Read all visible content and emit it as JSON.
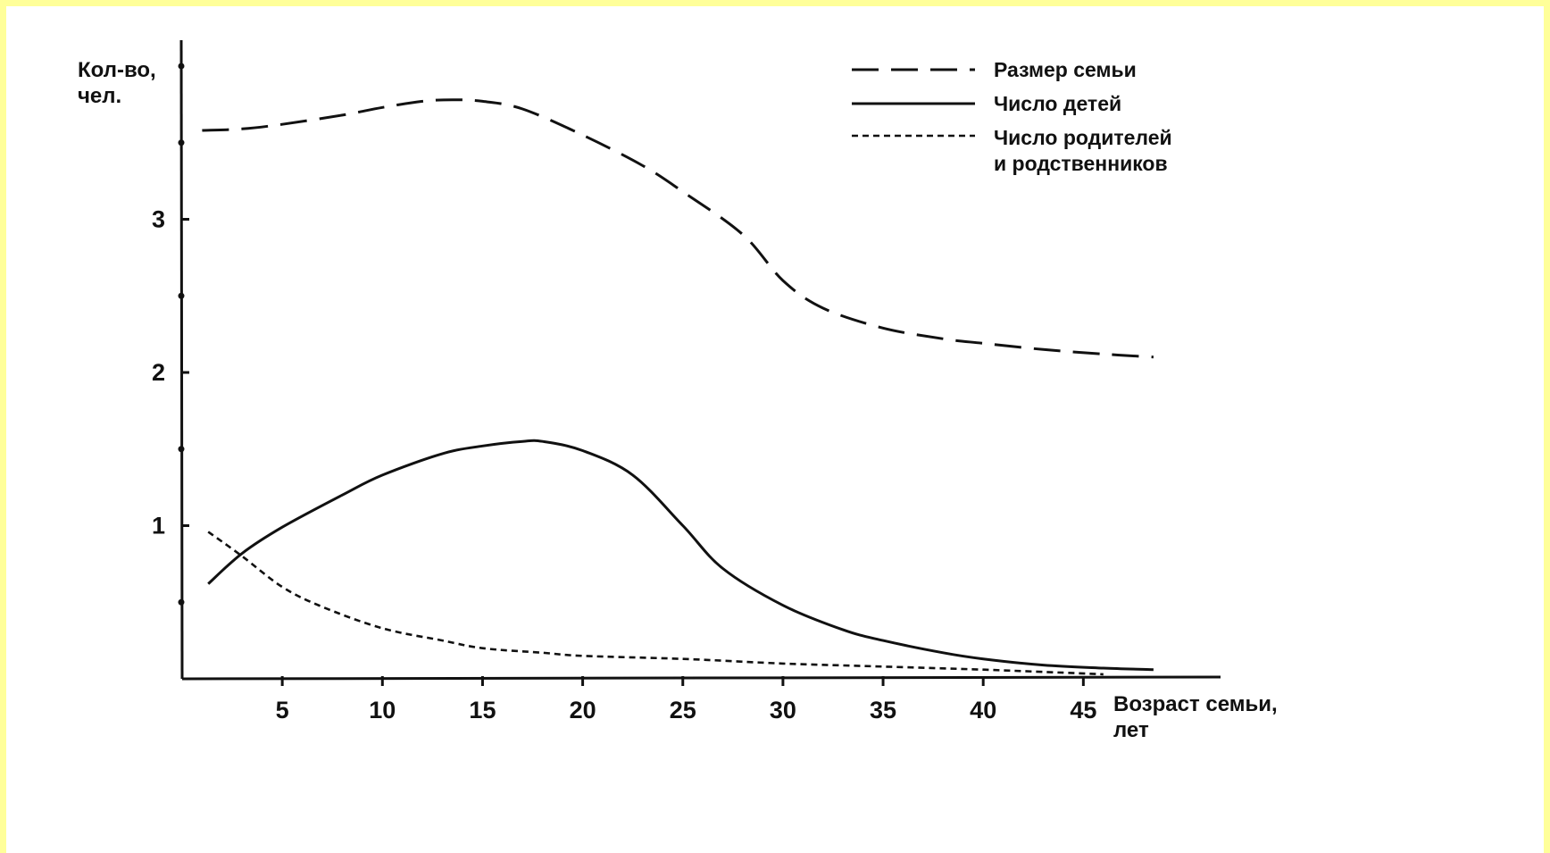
{
  "chart_data": {
    "type": "line",
    "ylabel": [
      "Кол-во,",
      "чел."
    ],
    "xlabel": [
      "Возраст семьи,",
      "лет"
    ],
    "xlim": [
      0,
      52
    ],
    "ylim": [
      0,
      4.2
    ],
    "x_ticks": [
      5,
      10,
      15,
      20,
      25,
      30,
      35,
      40,
      45
    ],
    "y_ticks": [
      1,
      2,
      3
    ],
    "y_minor_ticks": [
      0.5,
      1.5,
      2.5,
      3.5,
      4
    ],
    "grid": false,
    "legend_position": "top-right",
    "series": [
      {
        "name": "Размер семьи",
        "style": "long-dash",
        "x": [
          1,
          3,
          5,
          8,
          10,
          12,
          13.5,
          15,
          17,
          20,
          23,
          25,
          28,
          30,
          32,
          35,
          38,
          40,
          43,
          46,
          48.5
        ],
        "y": [
          3.58,
          3.59,
          3.62,
          3.68,
          3.73,
          3.77,
          3.78,
          3.77,
          3.72,
          3.55,
          3.35,
          3.18,
          2.9,
          2.6,
          2.42,
          2.29,
          2.22,
          2.19,
          2.15,
          2.12,
          2.1
        ]
      },
      {
        "name": "Число детей",
        "style": "solid",
        "x": [
          1.3,
          3,
          5,
          8,
          10,
          13,
          15,
          17,
          18,
          20,
          22.5,
          25,
          27,
          30,
          33,
          35,
          38,
          40,
          43,
          46,
          48.5
        ],
        "y": [
          0.62,
          0.82,
          0.99,
          1.2,
          1.33,
          1.47,
          1.52,
          1.55,
          1.55,
          1.49,
          1.33,
          1.0,
          0.72,
          0.48,
          0.32,
          0.25,
          0.17,
          0.13,
          0.09,
          0.07,
          0.06
        ]
      },
      {
        "name": "Число родителей и родственников",
        "legend_lines": [
          "Число родителей",
          "и родственников"
        ],
        "style": "short-dash",
        "x": [
          1.3,
          3,
          5,
          7,
          10,
          13,
          15,
          18,
          20,
          25,
          30,
          35,
          40,
          44,
          46
        ],
        "y": [
          0.96,
          0.8,
          0.6,
          0.47,
          0.33,
          0.25,
          0.2,
          0.17,
          0.15,
          0.13,
          0.1,
          0.08,
          0.06,
          0.04,
          0.03
        ]
      }
    ]
  }
}
